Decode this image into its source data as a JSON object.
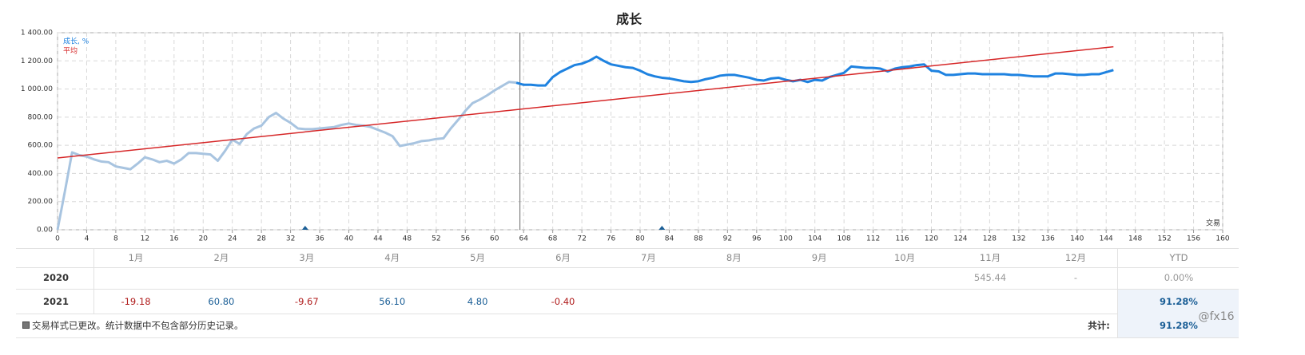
{
  "chart_data": {
    "type": "line",
    "title": "成长",
    "x_label": "交易",
    "xlim": [
      0,
      160
    ],
    "xticks": [
      0,
      4,
      8,
      12,
      16,
      20,
      24,
      28,
      32,
      36,
      40,
      44,
      48,
      52,
      56,
      60,
      64,
      68,
      72,
      76,
      80,
      84,
      88,
      92,
      96,
      100,
      104,
      108,
      112,
      116,
      120,
      124,
      128,
      132,
      136,
      140,
      144,
      148,
      152,
      156,
      160
    ],
    "ylim": [
      0,
      1400
    ],
    "yticks": [
      {
        "value": 0,
        "label": "0.00"
      },
      {
        "value": 200,
        "label": "200.00"
      },
      {
        "value": 400,
        "label": "400.00"
      },
      {
        "value": 600,
        "label": "600.00"
      },
      {
        "value": 800,
        "label": "800.00"
      },
      {
        "value": 1000,
        "label": "1 000.00"
      },
      {
        "value": 1200,
        "label": "1 200.00"
      },
      {
        "value": 1400,
        "label": "1 400.00"
      }
    ],
    "grid": true,
    "legend": "upper left",
    "divider_x": 63.5,
    "markers_x": [
      34,
      83
    ],
    "marker_color": "#1a5e96",
    "series": [
      {
        "name": "成长, %",
        "color": "#1e82e0",
        "history_color": "#a8c4e0",
        "x": [
          0,
          1,
          2,
          3,
          4,
          5,
          6,
          7,
          8,
          9,
          10,
          11,
          12,
          13,
          14,
          15,
          16,
          17,
          18,
          19,
          20,
          21,
          22,
          23,
          24,
          25,
          26,
          27,
          28,
          29,
          30,
          31,
          32,
          33,
          34,
          35,
          36,
          37,
          38,
          39,
          40,
          41,
          42,
          43,
          44,
          45,
          46,
          47,
          48,
          49,
          50,
          51,
          52,
          53,
          54,
          55,
          56,
          57,
          58,
          59,
          60,
          61,
          62,
          63,
          64,
          65,
          66,
          67,
          68,
          69,
          70,
          71,
          72,
          73,
          74,
          75,
          76,
          77,
          78,
          79,
          80,
          81,
          82,
          83,
          84,
          85,
          86,
          87,
          88,
          89,
          90,
          91,
          92,
          93,
          94,
          95,
          96,
          97,
          98,
          99,
          100,
          101,
          102,
          103,
          104,
          105,
          106,
          107,
          108,
          109,
          110,
          111,
          112,
          113,
          114,
          115,
          116,
          117,
          118,
          119,
          120,
          121,
          122,
          123,
          124,
          125,
          126,
          127,
          128,
          129,
          130,
          131,
          132,
          133,
          134,
          135,
          136,
          137,
          138,
          139,
          140,
          141,
          142,
          143,
          144,
          145
        ],
        "values": [
          0,
          270,
          550,
          530,
          520,
          500,
          485,
          480,
          450,
          440,
          430,
          470,
          515,
          500,
          480,
          490,
          470,
          500,
          545,
          545,
          540,
          535,
          490,
          560,
          640,
          610,
          680,
          720,
          740,
          800,
          830,
          790,
          760,
          720,
          715,
          715,
          720,
          725,
          730,
          745,
          755,
          745,
          740,
          730,
          710,
          690,
          665,
          595,
          605,
          615,
          630,
          635,
          645,
          650,
          720,
          780,
          845,
          900,
          925,
          955,
          990,
          1020,
          1050,
          1045,
          1030,
          1030,
          1025,
          1025,
          1085,
          1120,
          1145,
          1170,
          1180,
          1200,
          1230,
          1200,
          1175,
          1165,
          1155,
          1150,
          1130,
          1105,
          1090,
          1080,
          1075,
          1065,
          1055,
          1050,
          1055,
          1070,
          1080,
          1095,
          1100,
          1100,
          1090,
          1080,
          1065,
          1060,
          1075,
          1080,
          1065,
          1055,
          1065,
          1050,
          1065,
          1060,
          1085,
          1100,
          1115,
          1160,
          1155,
          1150,
          1150,
          1145,
          1125,
          1145,
          1155,
          1160,
          1170,
          1175,
          1130,
          1125,
          1100,
          1100,
          1105,
          1110,
          1110,
          1105,
          1105,
          1105,
          1105,
          1100,
          1100,
          1095,
          1090,
          1090,
          1090,
          1110,
          1110,
          1105,
          1100,
          1100,
          1105,
          1105,
          1120,
          1135
        ]
      },
      {
        "name": "平均",
        "color": "#d62728",
        "x": [
          0,
          145
        ],
        "values": [
          510,
          1300
        ]
      }
    ]
  },
  "table": {
    "columns": [
      "1月",
      "2月",
      "3月",
      "4月",
      "5月",
      "6月",
      "7月",
      "8月",
      "9月",
      "10月",
      "11月",
      "12月",
      "YTD"
    ],
    "rows": [
      {
        "year": "2020",
        "cells": [
          null,
          null,
          null,
          null,
          null,
          null,
          null,
          null,
          null,
          null,
          "545.44",
          "-",
          "0.00%"
        ]
      },
      {
        "year": "2021",
        "cells": [
          "-19.18",
          "60.80",
          "-9.67",
          "56.10",
          "4.80",
          "-0.40",
          null,
          null,
          null,
          null,
          null,
          null,
          "91.28%"
        ]
      }
    ]
  },
  "footer": {
    "note": "交易样式已更改。统计数据中不包含部分历史记录。",
    "total_label": "共计:",
    "total_value": "91.28%"
  },
  "watermark": "@fx16"
}
